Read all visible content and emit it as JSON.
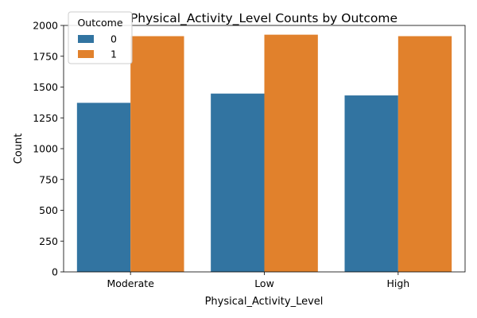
{
  "chart_data": {
    "type": "bar",
    "title": "Physical_Activity_Level Counts by Outcome",
    "xlabel": "Physical_Activity_Level",
    "ylabel": "Count",
    "categories": [
      "Moderate",
      "Low",
      "High"
    ],
    "series": [
      {
        "name": "0",
        "values": [
          1372,
          1447,
          1432
        ],
        "color": "#3274a1"
      },
      {
        "name": "1",
        "values": [
          1913,
          1925,
          1913
        ],
        "color": "#e1812c"
      }
    ],
    "ylim": [
      0,
      2000
    ],
    "yticks": [
      0,
      250,
      500,
      750,
      1000,
      1250,
      1500,
      1750,
      2000
    ],
    "grid": false,
    "legend": {
      "title": "Outcome",
      "placement": "top-left"
    }
  }
}
